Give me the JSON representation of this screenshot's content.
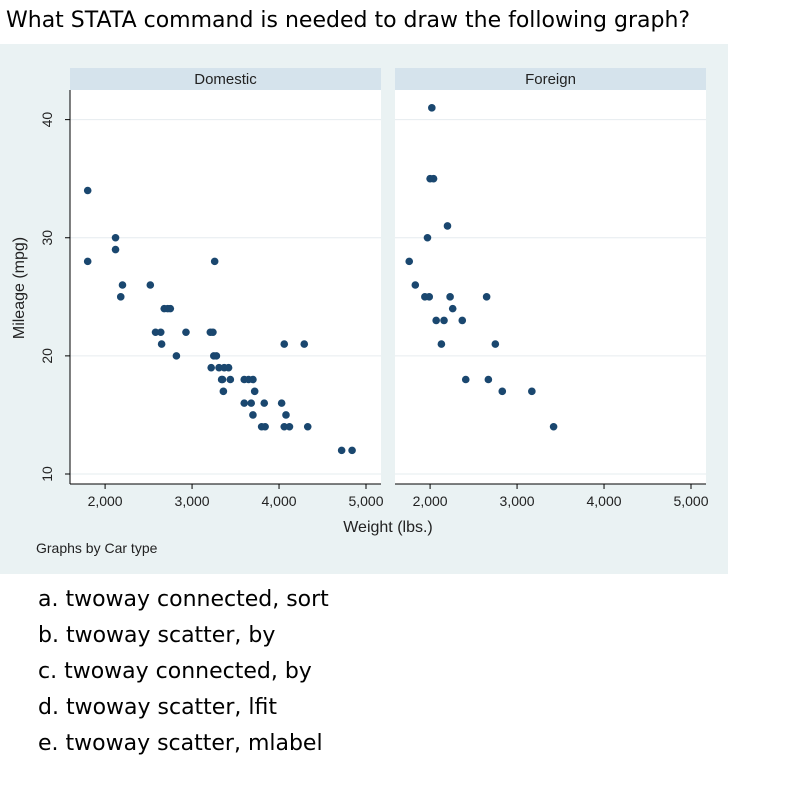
{
  "question": "What STATA command is needed to draw the following graph?",
  "answers": [
    "a. twoway connected, sort",
    "b. twoway scatter, by",
    "c. twoway connected, by",
    "d. twoway scatter, lfit",
    "e. twoway scatter, mlabel"
  ],
  "colors": {
    "figure_bg": "#eaf2f3",
    "plot_bg": "#ffffff",
    "strip_bg": "#d5e3ec",
    "marker": "#1a476f"
  },
  "chart_data": {
    "type": "scatter",
    "ylabel": "Mileage (mpg)",
    "xlabel": "Weight (lbs.)",
    "note": "Graphs by Car type",
    "xlim": [
      1700,
      5000
    ],
    "ylim": [
      10,
      42
    ],
    "x_ticks": [
      "2,000",
      "3,000",
      "4,000",
      "5,000"
    ],
    "x_tick_values": [
      2000,
      3000,
      4000,
      5000
    ],
    "y_ticks": [
      "10",
      "20",
      "30",
      "40"
    ],
    "y_tick_values": [
      10,
      20,
      30,
      40
    ],
    "grid": true,
    "panels": [
      {
        "name": "Domestic",
        "points": [
          [
            1800,
            34
          ],
          [
            1800,
            28
          ],
          [
            2120,
            30
          ],
          [
            2120,
            29
          ],
          [
            2200,
            26
          ],
          [
            2180,
            25
          ],
          [
            2520,
            26
          ],
          [
            2680,
            24
          ],
          [
            2720,
            24
          ],
          [
            2750,
            24
          ],
          [
            2580,
            22
          ],
          [
            2640,
            22
          ],
          [
            2650,
            21
          ],
          [
            2820,
            20
          ],
          [
            2930,
            22
          ],
          [
            3210,
            22
          ],
          [
            3240,
            22
          ],
          [
            3260,
            28
          ],
          [
            3250,
            20
          ],
          [
            3280,
            20
          ],
          [
            3220,
            19
          ],
          [
            3310,
            19
          ],
          [
            3370,
            19
          ],
          [
            3420,
            19
          ],
          [
            3340,
            18
          ],
          [
            3350,
            18
          ],
          [
            3360,
            17
          ],
          [
            3440,
            18
          ],
          [
            3600,
            18
          ],
          [
            3650,
            18
          ],
          [
            3700,
            18
          ],
          [
            3720,
            17
          ],
          [
            3600,
            16
          ],
          [
            3680,
            16
          ],
          [
            3700,
            15
          ],
          [
            3830,
            16
          ],
          [
            3800,
            14
          ],
          [
            3840,
            14
          ],
          [
            4030,
            16
          ],
          [
            4060,
            21
          ],
          [
            4080,
            15
          ],
          [
            4060,
            14
          ],
          [
            4120,
            14
          ],
          [
            4290,
            21
          ],
          [
            4330,
            14
          ],
          [
            4720,
            12
          ],
          [
            4840,
            12
          ]
        ]
      },
      {
        "name": "Foreign",
        "points": [
          [
            2020,
            41
          ],
          [
            2000,
            35
          ],
          [
            2040,
            35
          ],
          [
            2200,
            31
          ],
          [
            1970,
            30
          ],
          [
            1760,
            28
          ],
          [
            1830,
            26
          ],
          [
            1940,
            25
          ],
          [
            1990,
            25
          ],
          [
            2230,
            25
          ],
          [
            2650,
            25
          ],
          [
            2260,
            24
          ],
          [
            2070,
            23
          ],
          [
            2160,
            23
          ],
          [
            2370,
            23
          ],
          [
            2130,
            21
          ],
          [
            2750,
            21
          ],
          [
            2410,
            18
          ],
          [
            2670,
            18
          ],
          [
            2830,
            17
          ],
          [
            3170,
            17
          ],
          [
            3420,
            14
          ]
        ]
      }
    ]
  }
}
